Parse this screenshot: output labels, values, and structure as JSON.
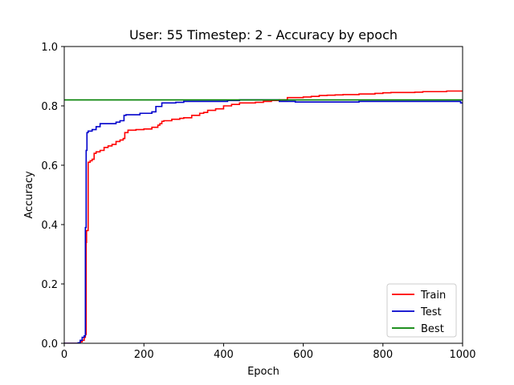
{
  "chart_data": {
    "type": "line",
    "title": "User: 55 Timestep: 2 - Accuracy by epoch",
    "xlabel": "Epoch",
    "ylabel": "Accuracy",
    "xlim": [
      0,
      1000
    ],
    "ylim": [
      0.0,
      1.0
    ],
    "xticks": [
      "0",
      "200",
      "400",
      "600",
      "800",
      "1000"
    ],
    "yticks": [
      "0.0",
      "0.2",
      "0.4",
      "0.6",
      "0.8",
      "1.0"
    ],
    "grid": false,
    "legend": "lower right",
    "series": [
      {
        "name": "Train",
        "color": "#ff0000",
        "style": "step",
        "x": [
          0,
          40,
          45,
          50,
          53,
          55,
          56,
          60,
          65,
          70,
          75,
          80,
          90,
          100,
          110,
          120,
          130,
          140,
          148,
          152,
          160,
          180,
          200,
          220,
          235,
          240,
          245,
          250,
          270,
          290,
          300,
          320,
          340,
          350,
          360,
          380,
          400,
          420,
          440,
          460,
          480,
          500,
          520,
          540,
          560,
          580,
          600,
          620,
          640,
          660,
          680,
          700,
          720,
          740,
          760,
          780,
          800,
          820,
          840,
          860,
          880,
          900,
          920,
          940,
          960,
          980,
          1000
        ],
        "y": [
          0.0,
          0.005,
          0.01,
          0.02,
          0.03,
          0.34,
          0.38,
          0.61,
          0.615,
          0.62,
          0.64,
          0.645,
          0.65,
          0.66,
          0.665,
          0.67,
          0.68,
          0.685,
          0.69,
          0.71,
          0.718,
          0.72,
          0.722,
          0.728,
          0.735,
          0.74,
          0.748,
          0.75,
          0.755,
          0.758,
          0.76,
          0.768,
          0.775,
          0.778,
          0.785,
          0.79,
          0.8,
          0.805,
          0.81,
          0.81,
          0.812,
          0.815,
          0.818,
          0.82,
          0.828,
          0.828,
          0.83,
          0.832,
          0.835,
          0.836,
          0.837,
          0.838,
          0.838,
          0.84,
          0.84,
          0.842,
          0.844,
          0.845,
          0.845,
          0.845,
          0.846,
          0.848,
          0.848,
          0.848,
          0.85,
          0.85,
          0.85
        ]
      },
      {
        "name": "Test",
        "color": "#0000cc",
        "style": "step",
        "x": [
          0,
          35,
          40,
          45,
          50,
          53,
          55,
          57,
          60,
          70,
          80,
          90,
          100,
          110,
          130,
          140,
          150,
          155,
          185,
          190,
          200,
          220,
          230,
          245,
          250,
          280,
          300,
          350,
          400,
          410,
          420,
          440,
          460,
          500,
          540,
          560,
          580,
          600,
          700,
          740,
          800,
          900,
          980,
          995,
          1000
        ],
        "y": [
          0.0,
          0.002,
          0.01,
          0.02,
          0.025,
          0.39,
          0.65,
          0.71,
          0.715,
          0.72,
          0.73,
          0.74,
          0.74,
          0.74,
          0.745,
          0.75,
          0.768,
          0.77,
          0.77,
          0.775,
          0.775,
          0.78,
          0.798,
          0.81,
          0.81,
          0.812,
          0.815,
          0.815,
          0.815,
          0.818,
          0.818,
          0.82,
          0.82,
          0.82,
          0.815,
          0.815,
          0.813,
          0.813,
          0.813,
          0.815,
          0.815,
          0.815,
          0.815,
          0.81,
          0.81
        ]
      },
      {
        "name": "Best",
        "color": "#008000",
        "style": "line",
        "x": [
          0,
          1000
        ],
        "y": [
          0.82,
          0.82
        ]
      }
    ]
  }
}
